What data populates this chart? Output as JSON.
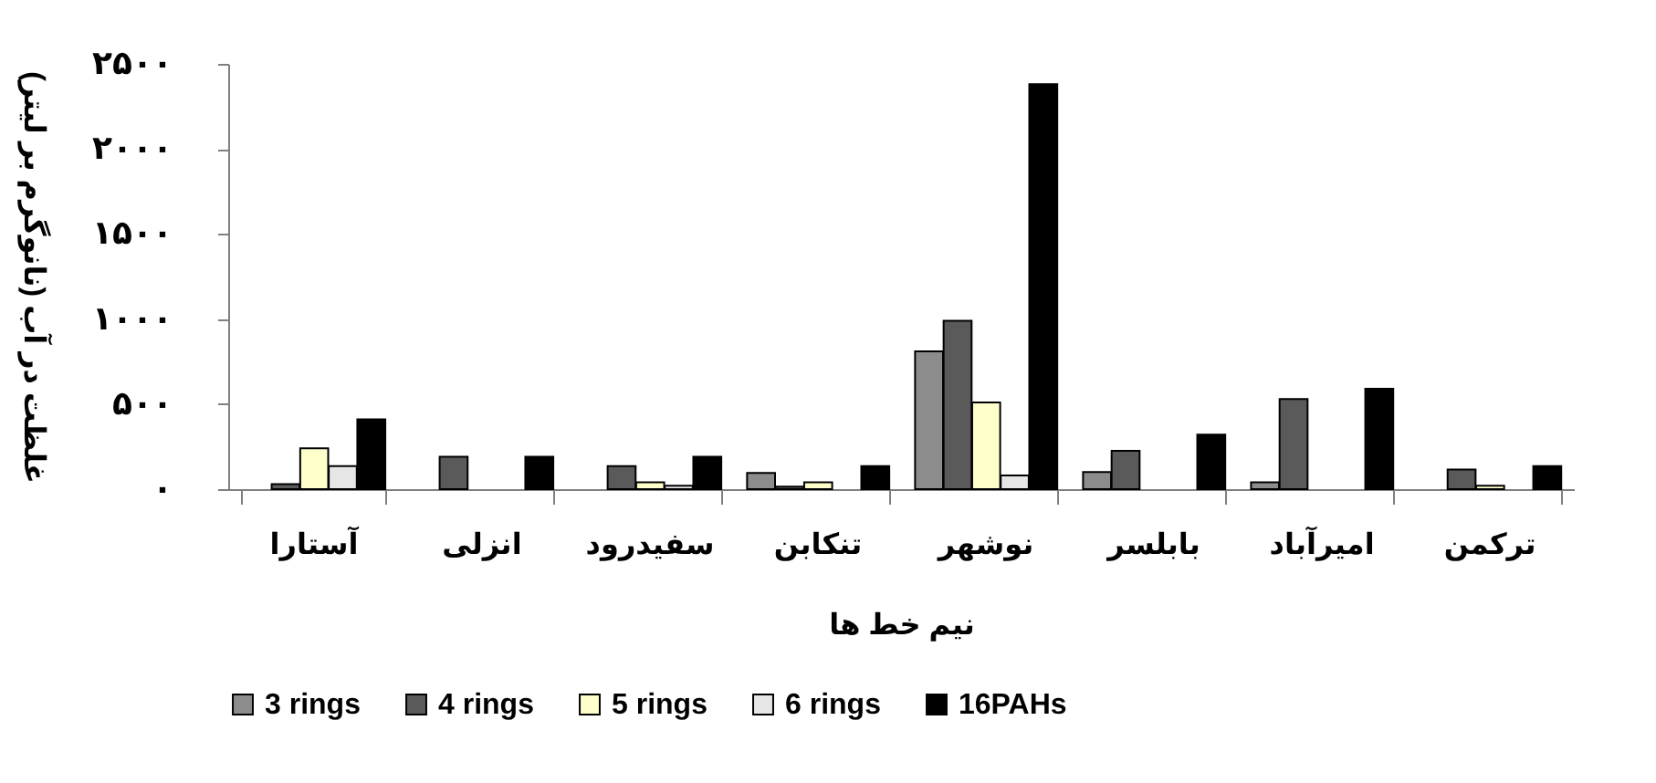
{
  "chart_data": {
    "type": "bar",
    "xlabel": "نیم خط ها",
    "ylabel": "غلظت در آب (نانوگرم بر لیتر)",
    "categories": [
      "آستارا",
      "انزلی",
      "سفیدرود",
      "تنکابن",
      "نوشهر",
      "بابلسر",
      "امیرآباد",
      "ترکمن"
    ],
    "series": [
      {
        "name": "3 rings",
        "color": "#8c8c8c",
        "values": [
          null,
          null,
          null,
          95,
          810,
          100,
          40,
          null
        ]
      },
      {
        "name": "4 rings",
        "color": "#5a5a5a",
        "values": [
          30,
          190,
          135,
          15,
          990,
          225,
          530,
          115
        ]
      },
      {
        "name": "5 rings",
        "color": "#ffffcc",
        "values": [
          240,
          null,
          40,
          40,
          510,
          null,
          null,
          20
        ]
      },
      {
        "name": "6 rings",
        "color": "#e6e6e6",
        "values": [
          135,
          null,
          20,
          null,
          80,
          null,
          null,
          null
        ]
      },
      {
        "name": "16PAHs",
        "color": "#000000",
        "values": [
          410,
          190,
          190,
          135,
          2380,
          320,
          590,
          135
        ]
      }
    ],
    "ylim": [
      0,
      2500
    ],
    "yticks": [
      {
        "value": 0,
        "label": "۰"
      },
      {
        "value": 500,
        "label": "۵۰۰"
      },
      {
        "value": 1000,
        "label": "۱۰۰۰"
      },
      {
        "value": 1500,
        "label": "۱۵۰۰"
      },
      {
        "value": 2000,
        "label": "۲۰۰۰"
      },
      {
        "value": 2500,
        "label": "۲۵۰۰"
      }
    ],
    "legend": "bottom"
  }
}
